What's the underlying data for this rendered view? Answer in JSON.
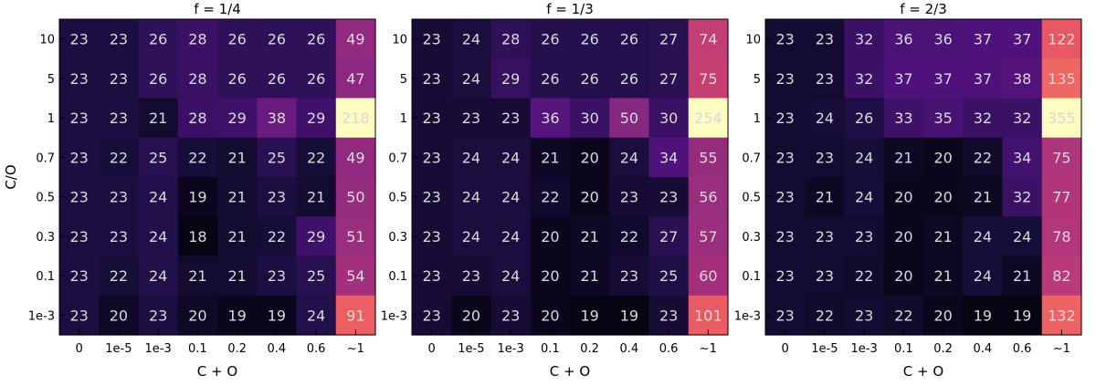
{
  "chart_data": [
    {
      "type": "heatmap",
      "title": "f = 1/4",
      "xlabel": "C + O",
      "ylabel": "C/O",
      "x_categories": [
        "0",
        "1e-5",
        "1e-3",
        "0.1",
        "0.2",
        "0.4",
        "0.6",
        "~1"
      ],
      "y_categories": [
        "10",
        "5",
        "1",
        "0.7",
        "0.5",
        "0.3",
        "0.1",
        "1e-3"
      ],
      "values": [
        [
          23,
          23,
          26,
          28,
          26,
          26,
          26,
          49
        ],
        [
          23,
          23,
          26,
          28,
          26,
          26,
          26,
          47
        ],
        [
          23,
          23,
          21,
          28,
          29,
          38,
          29,
          218
        ],
        [
          23,
          22,
          25,
          22,
          21,
          25,
          22,
          49
        ],
        [
          23,
          23,
          24,
          19,
          21,
          23,
          21,
          50
        ],
        [
          23,
          23,
          24,
          18,
          21,
          22,
          29,
          51
        ],
        [
          23,
          22,
          24,
          21,
          21,
          23,
          25,
          54
        ],
        [
          23,
          20,
          23,
          20,
          19,
          19,
          24,
          91
        ]
      ],
      "colormap": "magma"
    },
    {
      "type": "heatmap",
      "title": "f = 1/3",
      "xlabel": "C + O",
      "ylabel": "",
      "x_categories": [
        "0",
        "1e-5",
        "1e-3",
        "0.1",
        "0.2",
        "0.4",
        "0.6",
        "~1"
      ],
      "y_categories": [
        "10",
        "5",
        "1",
        "0.7",
        "0.5",
        "0.3",
        "0.1",
        "1e-3"
      ],
      "values": [
        [
          23,
          24,
          28,
          26,
          26,
          26,
          27,
          74
        ],
        [
          23,
          24,
          29,
          26,
          26,
          26,
          27,
          75
        ],
        [
          23,
          23,
          23,
          36,
          30,
          50,
          30,
          254
        ],
        [
          23,
          24,
          24,
          21,
          20,
          24,
          34,
          55
        ],
        [
          23,
          24,
          24,
          22,
          20,
          23,
          23,
          56
        ],
        [
          23,
          24,
          24,
          20,
          21,
          22,
          27,
          57
        ],
        [
          23,
          23,
          24,
          20,
          21,
          23,
          25,
          60
        ],
        [
          23,
          20,
          23,
          20,
          19,
          19,
          23,
          101
        ]
      ],
      "colormap": "magma"
    },
    {
      "type": "heatmap",
      "title": "f = 2/3",
      "xlabel": "C + O",
      "ylabel": "",
      "x_categories": [
        "0",
        "1e-5",
        "1e-3",
        "0.1",
        "0.2",
        "0.4",
        "0.6",
        "~1"
      ],
      "y_categories": [
        "10",
        "5",
        "1",
        "0.7",
        "0.5",
        "0.3",
        "0.1",
        "1e-3"
      ],
      "values": [
        [
          23,
          23,
          32,
          36,
          36,
          37,
          37,
          122
        ],
        [
          23,
          23,
          32,
          37,
          37,
          37,
          38,
          135
        ],
        [
          23,
          24,
          26,
          33,
          35,
          32,
          32,
          355
        ],
        [
          23,
          23,
          24,
          21,
          20,
          22,
          34,
          75
        ],
        [
          23,
          21,
          24,
          20,
          20,
          21,
          32,
          77
        ],
        [
          23,
          23,
          23,
          20,
          21,
          24,
          24,
          78
        ],
        [
          23,
          23,
          22,
          20,
          21,
          24,
          21,
          82
        ],
        [
          23,
          22,
          23,
          22,
          20,
          19,
          19,
          132
        ]
      ],
      "colormap": "magma"
    }
  ]
}
